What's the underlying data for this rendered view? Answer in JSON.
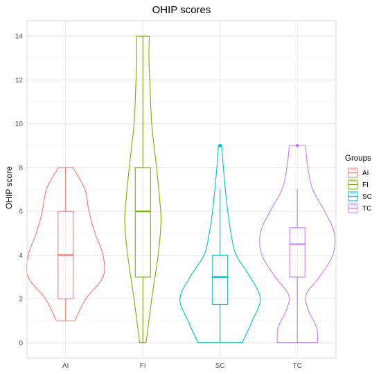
{
  "chart_data": {
    "type": "violin",
    "title": "OHIP scores",
    "xlabel": "",
    "ylabel": "OHIP score",
    "categories": [
      "AI",
      "FI",
      "SC",
      "TC"
    ],
    "ylim": [
      -0.7,
      14.7
    ],
    "yticks": [
      0,
      2,
      4,
      6,
      8,
      10,
      12,
      14
    ],
    "grid": true,
    "legend": {
      "title": "Groups",
      "position": "right",
      "entries": [
        "AI",
        "FI",
        "SC",
        "TC"
      ]
    },
    "colors": {
      "AI": "#F8766D",
      "FI": "#7CAE00",
      "SC": "#00BFC4",
      "TC": "#C77CFF"
    },
    "series": [
      {
        "category": "AI",
        "box": {
          "min": 1,
          "q1": 2,
          "median": 4,
          "q3": 6,
          "max": 8
        },
        "outliers": [],
        "violin": [
          [
            1,
            0.23
          ],
          [
            2,
            0.5
          ],
          [
            3,
            0.93
          ],
          [
            4,
            0.93
          ],
          [
            5,
            0.73
          ],
          [
            6,
            0.58
          ],
          [
            7,
            0.48
          ],
          [
            8,
            0.18
          ]
        ]
      },
      {
        "category": "FI",
        "box": {
          "min": 0,
          "q1": 3,
          "median": 6,
          "q3": 8,
          "max": 14
        },
        "outliers": [],
        "violin": [
          [
            0,
            0.08
          ],
          [
            2,
            0.22
          ],
          [
            4,
            0.38
          ],
          [
            5.5,
            0.45
          ],
          [
            6.5,
            0.42
          ],
          [
            8,
            0.34
          ],
          [
            10,
            0.22
          ],
          [
            12,
            0.17
          ],
          [
            13,
            0.15
          ],
          [
            14,
            0.16
          ]
        ]
      },
      {
        "category": "SC",
        "box": {
          "min": 0,
          "q1": 1.75,
          "median": 3,
          "q3": 4,
          "max": 7
        },
        "outliers": [
          9
        ],
        "violin": [
          [
            0,
            0.55
          ],
          [
            1,
            0.8
          ],
          [
            2,
            1.0
          ],
          [
            3,
            0.75
          ],
          [
            4,
            0.4
          ],
          [
            5,
            0.27
          ],
          [
            6,
            0.19
          ],
          [
            7,
            0.13
          ],
          [
            8,
            0.08
          ],
          [
            9,
            0.04
          ]
        ]
      },
      {
        "category": "TC",
        "box": {
          "min": 0,
          "q1": 3,
          "median": 4.5,
          "q3": 5.25,
          "max": 7
        },
        "outliers": [
          9
        ],
        "violin": [
          [
            0,
            0.5
          ],
          [
            0.7,
            0.48
          ],
          [
            1.5,
            0.27
          ],
          [
            2.2,
            0.22
          ],
          [
            3,
            0.55
          ],
          [
            4,
            0.88
          ],
          [
            5,
            0.92
          ],
          [
            6,
            0.68
          ],
          [
            7,
            0.38
          ],
          [
            8,
            0.26
          ],
          [
            9,
            0.2
          ]
        ]
      }
    ]
  }
}
